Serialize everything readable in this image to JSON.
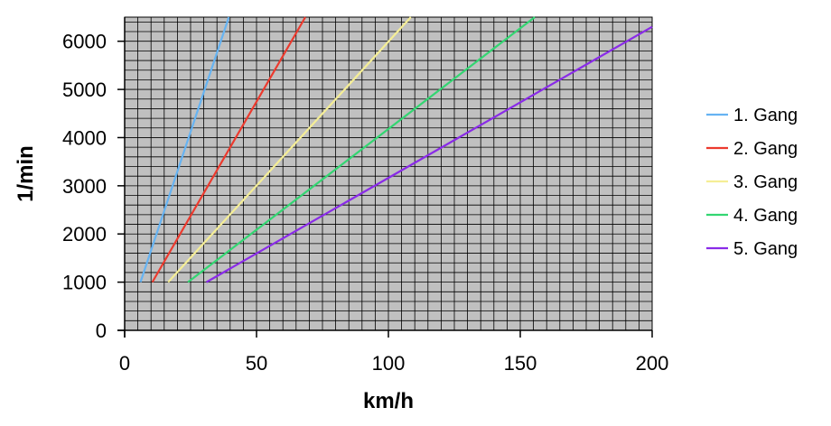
{
  "chart_data": {
    "type": "line",
    "title": "",
    "xlabel": "km/h",
    "ylabel": "1/min",
    "xlim": [
      0,
      200
    ],
    "ylim": [
      0,
      6500
    ],
    "x_ticks": [
      0,
      50,
      100,
      150,
      200
    ],
    "y_ticks": [
      0,
      1000,
      2000,
      3000,
      4000,
      5000,
      6000
    ],
    "x_minor_step": 5,
    "y_minor_step": 200,
    "grid": true,
    "plot_background": "#c0c0c0",
    "legend_position": "right",
    "series": [
      {
        "name": "1. Gang",
        "color": "#66b3f2",
        "x": [
          6,
          39.5
        ],
        "y": [
          1000,
          6500
        ]
      },
      {
        "name": "2. Gang",
        "color": "#ec3a2e",
        "x": [
          10.5,
          68.5
        ],
        "y": [
          1000,
          6500
        ]
      },
      {
        "name": "3. Gang",
        "color": "#f5ee96",
        "x": [
          16.5,
          108.5
        ],
        "y": [
          1000,
          6500
        ]
      },
      {
        "name": "4. Gang",
        "color": "#33d672",
        "x": [
          24,
          155.5
        ],
        "y": [
          1000,
          6500
        ]
      },
      {
        "name": "5. Gang",
        "color": "#8a2be8",
        "x": [
          31,
          200
        ],
        "y": [
          1000,
          6300
        ]
      }
    ]
  }
}
